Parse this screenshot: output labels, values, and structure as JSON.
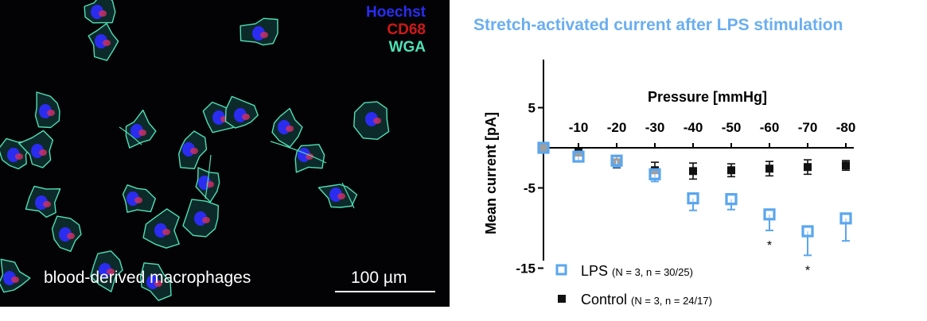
{
  "micrograph": {
    "stains": [
      {
        "name": "Hoechst",
        "color": "#2a2cf0"
      },
      {
        "name": "CD68",
        "color": "#d01818"
      },
      {
        "name": "WGA",
        "color": "#4fe0b4"
      }
    ],
    "caption": "blood-derived macrophages",
    "scale_bar_label": "100 µm"
  },
  "chart_data": {
    "type": "scatter",
    "title": "Stretch-activated current after LPS stimulation",
    "xlabel": "Pressure [mmHg]",
    "ylabel": "Mean current  [pA]",
    "x": [
      0,
      -10,
      -20,
      -30,
      -40,
      -50,
      -60,
      -70,
      -80
    ],
    "x_tick_labels": [
      "-10",
      "-20",
      "-30",
      "-40",
      "-50",
      "-60",
      "-70",
      "-80"
    ],
    "xlim": [
      0,
      -80
    ],
    "ylim": [
      -15,
      10
    ],
    "y_ticks": [
      5,
      -5,
      -15
    ],
    "y_tick_labels": [
      "5",
      "-5",
      "-15"
    ],
    "grid": false,
    "series": [
      {
        "name": "LPS",
        "legend_note": "(N = 3, n = 30/25)",
        "marker": "open-square",
        "color": "#5aa6ee",
        "values": [
          0,
          -1.1,
          -1.6,
          -3.3,
          -6.3,
          -6.4,
          -8.3,
          -10.4,
          -8.8
        ],
        "error": [
          0,
          0.6,
          0.8,
          0.9,
          1.5,
          1.3,
          2.0,
          3.0,
          2.8
        ]
      },
      {
        "name": "Control",
        "legend_note": "(N = 3, n = 24/17)",
        "marker": "filled-square",
        "color": "#111111",
        "values": [
          0,
          -0.6,
          -1.8,
          -2.8,
          -2.9,
          -2.8,
          -2.6,
          -2.4,
          -2.2
        ],
        "error": [
          0,
          0.4,
          0.7,
          1.0,
          1.0,
          0.8,
          0.9,
          0.9,
          0.6
        ]
      }
    ],
    "significance": [
      {
        "x": -60,
        "label": "*"
      },
      {
        "x": -70,
        "label": "*"
      }
    ],
    "legend_position": "bottom-left"
  }
}
